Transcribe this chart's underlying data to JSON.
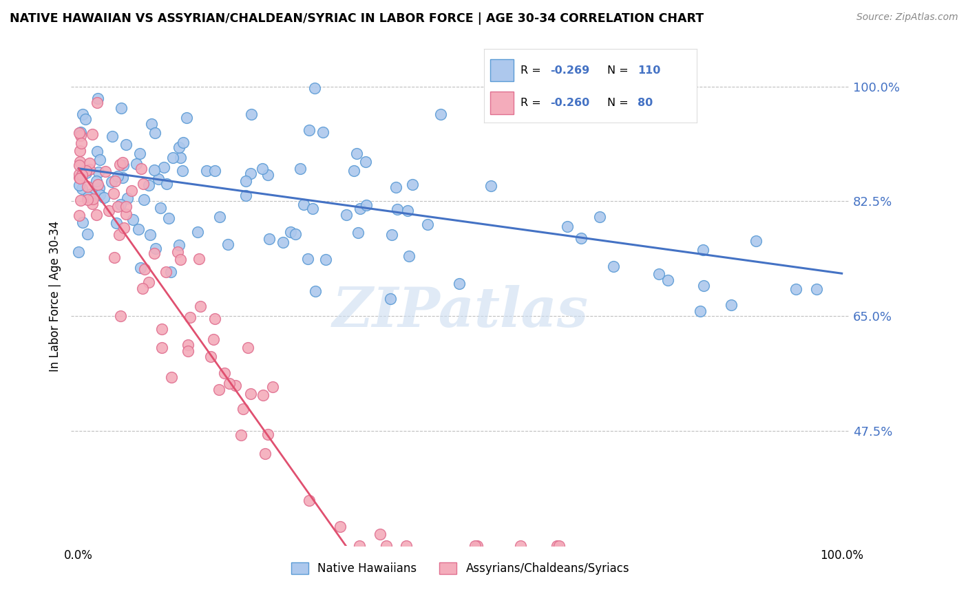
{
  "title": "NATIVE HAWAIIAN VS ASSYRIAN/CHALDEAN/SYRIAC IN LABOR FORCE | AGE 30-34 CORRELATION CHART",
  "source": "Source: ZipAtlas.com",
  "ylabel": "In Labor Force | Age 30-34",
  "ytick_vals": [
    0.475,
    0.65,
    0.825,
    1.0
  ],
  "ytick_labels": [
    "47.5%",
    "65.0%",
    "82.5%",
    "100.0%"
  ],
  "blue_color": "#adc8ed",
  "blue_edge_color": "#5b9bd5",
  "blue_line_color": "#4472c4",
  "pink_color": "#f4acbb",
  "pink_edge_color": "#e07090",
  "pink_line_color": "#e05070",
  "blue_R": -0.269,
  "blue_N": 110,
  "pink_R": -0.26,
  "pink_N": 80,
  "watermark": "ZIPatlas",
  "legend_label_blue": "Native Hawaiians",
  "legend_label_pink": "Assyrians/Chaldeans/Syriacs",
  "legend_color": "#4472c4",
  "ylim_low": 0.3,
  "ylim_high": 1.06,
  "xlim_low": -0.01,
  "xlim_high": 1.01,
  "blue_trend_x0": 0.0,
  "blue_trend_y0": 0.875,
  "blue_trend_x1": 1.0,
  "blue_trend_y1": 0.715,
  "pink_trend_x0": 0.0,
  "pink_trend_y0": 0.875,
  "pink_trend_x1": 0.35,
  "pink_trend_y1": 0.3
}
